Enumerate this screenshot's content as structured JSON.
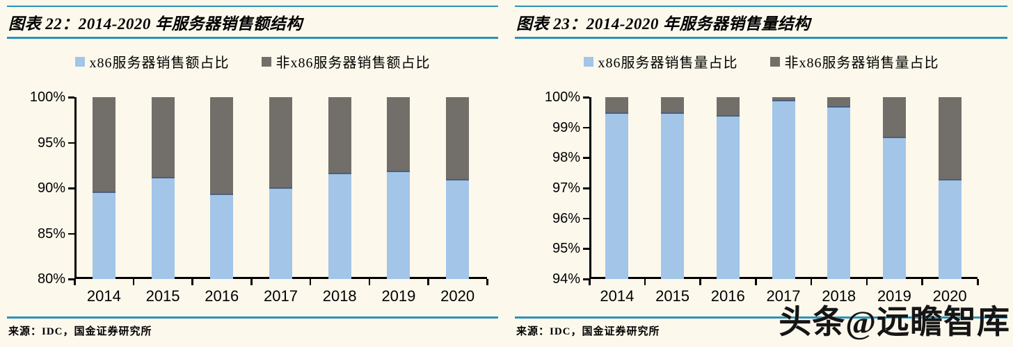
{
  "page": {
    "background": "#FCF8EC",
    "accent_color": "#2793BD",
    "axis_color": "#000000",
    "source_label": "来源：IDC，国金证券研究所",
    "watermark": "头条@远瞻智库"
  },
  "chart_data": [
    {
      "type": "bar",
      "stacked": true,
      "title": "图表 22：2014-2020 年服务器销售额结构",
      "categories": [
        "2014",
        "2015",
        "2016",
        "2017",
        "2018",
        "2019",
        "2020"
      ],
      "series": [
        {
          "name": "x86服务器销售额占比",
          "color": "#A2C5E8",
          "edge_color": "#4A6080",
          "values": [
            89.6,
            91.2,
            89.4,
            90.1,
            91.7,
            91.9,
            91.0
          ]
        },
        {
          "name": "非x86服务器销售额占比",
          "color": "#726E69",
          "values": [
            10.4,
            8.8,
            10.6,
            9.9,
            8.3,
            8.1,
            9.0
          ]
        }
      ],
      "xlabel": "",
      "ylabel": "",
      "ylim": [
        80,
        100
      ],
      "ytick_step": 5,
      "ytick_labels": [
        "100%",
        "95%",
        "90%",
        "85%",
        "80%"
      ],
      "grid": false,
      "legend_position": "top"
    },
    {
      "type": "bar",
      "stacked": true,
      "title": "图表 23：2014-2020 年服务器销售量结构",
      "categories": [
        "2014",
        "2015",
        "2016",
        "2017",
        "2018",
        "2019",
        "2020"
      ],
      "series": [
        {
          "name": "x86服务器销售量占比",
          "color": "#A2C5E8",
          "edge_color": "#4A6080",
          "values": [
            99.5,
            99.5,
            99.4,
            99.9,
            99.7,
            98.7,
            97.3
          ]
        },
        {
          "name": "非x86服务器销售量占比",
          "color": "#726E69",
          "values": [
            0.5,
            0.5,
            0.6,
            0.1,
            0.3,
            1.3,
            2.7
          ]
        }
      ],
      "xlabel": "",
      "ylabel": "",
      "ylim": [
        94,
        100
      ],
      "ytick_step": 1,
      "ytick_labels": [
        "100%",
        "99%",
        "98%",
        "97%",
        "96%",
        "95%",
        "94%"
      ],
      "grid": false,
      "legend_position": "top"
    }
  ]
}
